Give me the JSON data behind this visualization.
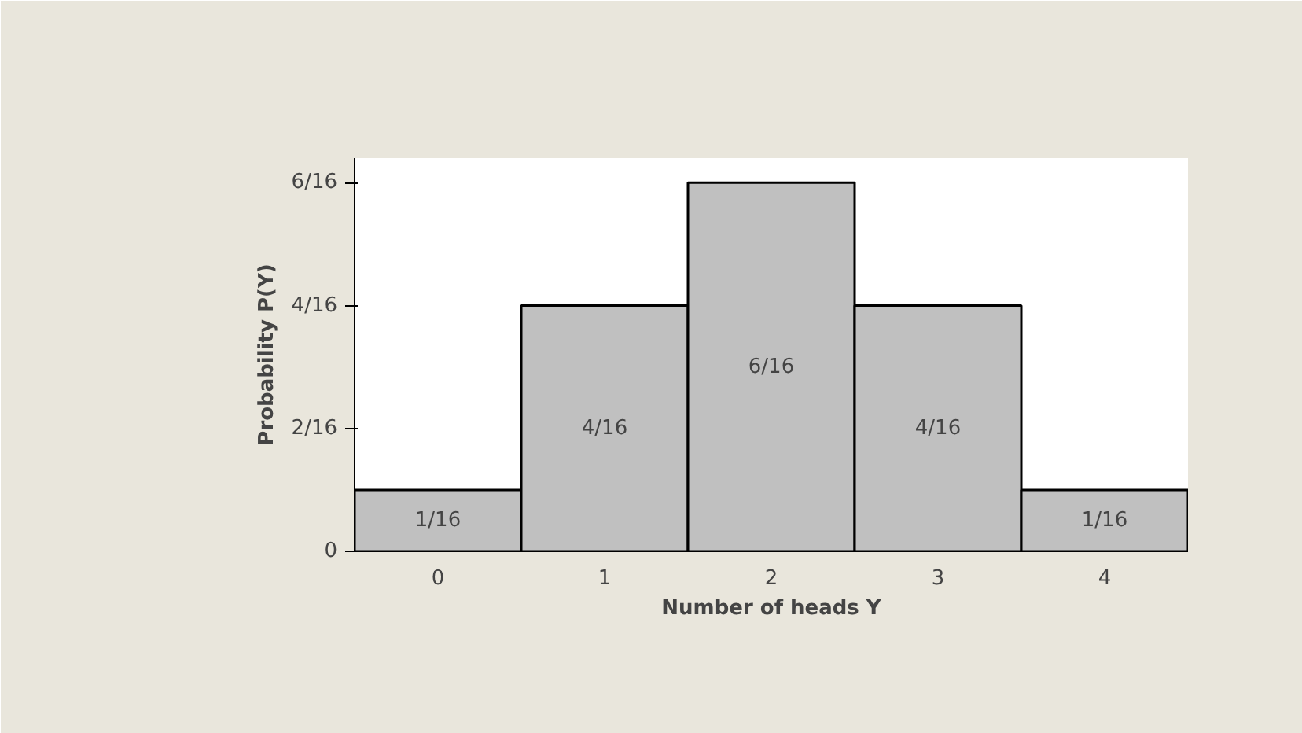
{
  "chart_data": {
    "type": "bar",
    "xlabel": "Number of heads Y",
    "ylabel": "Probability P(Y)",
    "categories": [
      "0",
      "1",
      "2",
      "3",
      "4"
    ],
    "values": [
      0.0625,
      0.25,
      0.375,
      0.25,
      0.0625
    ],
    "value_labels": [
      "1/16",
      "4/16",
      "6/16",
      "4/16",
      "1/16"
    ],
    "color": "#c0c0c0",
    "ylim": [
      0,
      0.4
    ],
    "yticks": [
      0,
      {
        "value": 0.125,
        "label": "2/16"
      },
      {
        "value": 0.25,
        "label": "4/16"
      },
      {
        "value": 0.375,
        "label": "6/16"
      }
    ],
    "grid": false
  }
}
